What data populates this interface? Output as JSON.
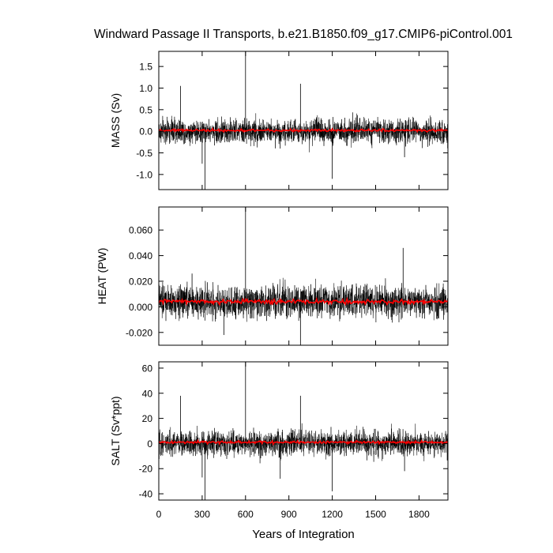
{
  "title": "Windward Passage II Transports, b.e21.B1850.f09_g17.CMIP6-piControl.001",
  "xlabel": "Years of Integration",
  "xticks": [
    "0",
    "300",
    "600",
    "900",
    "1200",
    "1500",
    "1800"
  ],
  "colors": {
    "raw": "#000000",
    "smoothed": "#ff0000"
  },
  "chart_data": [
    {
      "type": "line",
      "ylabel": "MASS (Sv)",
      "xlim": [
        0,
        2000
      ],
      "ylim": [
        -1.35,
        1.85
      ],
      "yticks": [
        "-1.0",
        "-0.5",
        "0.0",
        "0.5",
        "1.0",
        "1.5"
      ],
      "series": [
        {
          "style": "raw-annual",
          "mean": 0.0,
          "noise_amplitude": 0.2,
          "spikes": [
            [
              150,
              1.05
            ],
            [
              300,
              -0.75
            ],
            [
              320,
              -1.35
            ],
            [
              600,
              1.85
            ],
            [
              840,
              -0.4
            ],
            [
              980,
              1.1
            ],
            [
              1200,
              -1.1
            ],
            [
              1700,
              -0.6
            ]
          ]
        },
        {
          "style": "smoothed",
          "mean": 0.02,
          "noise_amplitude": 0.02
        }
      ]
    },
    {
      "type": "line",
      "ylabel": "HEAT (PW)",
      "xlim": [
        0,
        2000
      ],
      "ylim": [
        -0.03,
        0.078
      ],
      "yticks": [
        "-0.020",
        "0.000",
        "0.020",
        "0.040",
        "0.060"
      ],
      "series": [
        {
          "style": "raw-annual",
          "mean": 0.004,
          "noise_amplitude": 0.009,
          "spikes": [
            [
              600,
              0.078
            ],
            [
              980,
              -0.03
            ],
            [
              1690,
              0.046
            ],
            [
              230,
              0.026
            ],
            [
              450,
              -0.022
            ]
          ]
        },
        {
          "style": "smoothed",
          "mean": 0.004,
          "noise_amplitude": 0.0012
        }
      ]
    },
    {
      "type": "line",
      "ylabel": "SALT (Sv*ppt)",
      "xlim": [
        0,
        2000
      ],
      "ylim": [
        -45,
        65
      ],
      "yticks": [
        "-40",
        "-20",
        "0",
        "20",
        "40",
        "60"
      ],
      "series": [
        {
          "style": "raw-annual",
          "mean": 0.0,
          "noise_amplitude": 7,
          "spikes": [
            [
              150,
              38
            ],
            [
              300,
              -27
            ],
            [
              320,
              -45
            ],
            [
              600,
              65
            ],
            [
              840,
              -28
            ],
            [
              980,
              38
            ],
            [
              1200,
              -38
            ],
            [
              1700,
              -22
            ]
          ]
        },
        {
          "style": "smoothed",
          "mean": 1.0,
          "noise_amplitude": 0.7
        }
      ]
    }
  ]
}
